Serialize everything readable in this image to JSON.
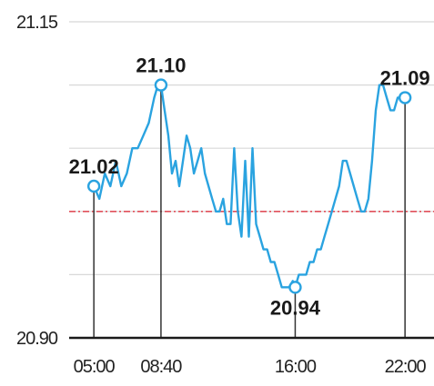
{
  "chart_data": {
    "type": "line",
    "title": "",
    "xlabel": "",
    "ylabel": "",
    "ylim": [
      20.9,
      21.15
    ],
    "y_ticks": [
      {
        "value": 21.15,
        "label": "21.15"
      },
      {
        "value": 20.9,
        "label": "20.90"
      }
    ],
    "y_gridlines": [
      21.1,
      21.05,
      21.0,
      20.95
    ],
    "x_ticks": [
      {
        "label": "05:00",
        "t": 300
      },
      {
        "label": "08:40",
        "t": 520
      },
      {
        "label": "16:00",
        "t": 960
      },
      {
        "label": "22:00",
        "t": 1320
      }
    ],
    "reference_line": {
      "value": 21.0,
      "style": "dash-dot",
      "color": "#e0505a"
    },
    "colors": {
      "series": "#2aa3e0",
      "grid": "#d8d8d8",
      "axis": "#1a1a1a",
      "stem": "#333333"
    },
    "annotations": [
      {
        "label": "21.02",
        "t": 300,
        "value": 21.02,
        "label_side": "above"
      },
      {
        "label": "21.10",
        "t": 520,
        "value": 21.1,
        "label_side": "above"
      },
      {
        "label": "20.94",
        "t": 960,
        "value": 20.94,
        "label_side": "below"
      },
      {
        "label": "21.09",
        "t": 1320,
        "value": 21.09,
        "label_side": "above"
      }
    ],
    "series": [
      {
        "t": [
          300,
          318,
          336,
          354,
          372,
          390,
          408,
          426,
          444,
          462,
          480,
          498,
          510,
          520,
          532,
          544,
          556,
          568,
          580,
          592,
          604,
          616,
          628,
          640,
          652,
          664,
          676,
          688,
          700,
          712,
          724,
          736,
          748,
          760,
          772,
          784,
          796,
          808,
          820,
          832,
          844,
          856,
          868,
          880,
          892,
          904,
          916,
          928,
          940,
          952,
          960,
          972,
          984,
          996,
          1008,
          1020,
          1032,
          1044,
          1056,
          1068,
          1080,
          1092,
          1104,
          1116,
          1128,
          1140,
          1152,
          1164,
          1176,
          1188,
          1200,
          1212,
          1224,
          1236,
          1248,
          1260,
          1272,
          1284,
          1296,
          1308,
          1320
        ],
        "values": [
          21.02,
          21.01,
          21.03,
          21.02,
          21.04,
          21.02,
          21.03,
          21.05,
          21.05,
          21.06,
          21.07,
          21.09,
          21.1,
          21.1,
          21.08,
          21.06,
          21.03,
          21.04,
          21.02,
          21.04,
          21.06,
          21.05,
          21.03,
          21.04,
          21.05,
          21.03,
          21.02,
          21.01,
          21.0,
          21.0,
          21.01,
          20.99,
          20.99,
          21.05,
          21.0,
          20.98,
          21.04,
          20.98,
          21.05,
          20.99,
          20.98,
          20.97,
          20.97,
          20.96,
          20.96,
          20.95,
          20.94,
          20.94,
          20.94,
          20.945,
          20.94,
          20.95,
          20.95,
          20.95,
          20.96,
          20.96,
          20.97,
          20.97,
          20.98,
          20.99,
          21.0,
          21.01,
          21.02,
          21.04,
          21.04,
          21.03,
          21.02,
          21.01,
          21.0,
          21.0,
          21.01,
          21.04,
          21.08,
          21.1,
          21.1,
          21.09,
          21.08,
          21.08,
          21.09,
          21.09,
          21.09
        ]
      }
    ]
  }
}
